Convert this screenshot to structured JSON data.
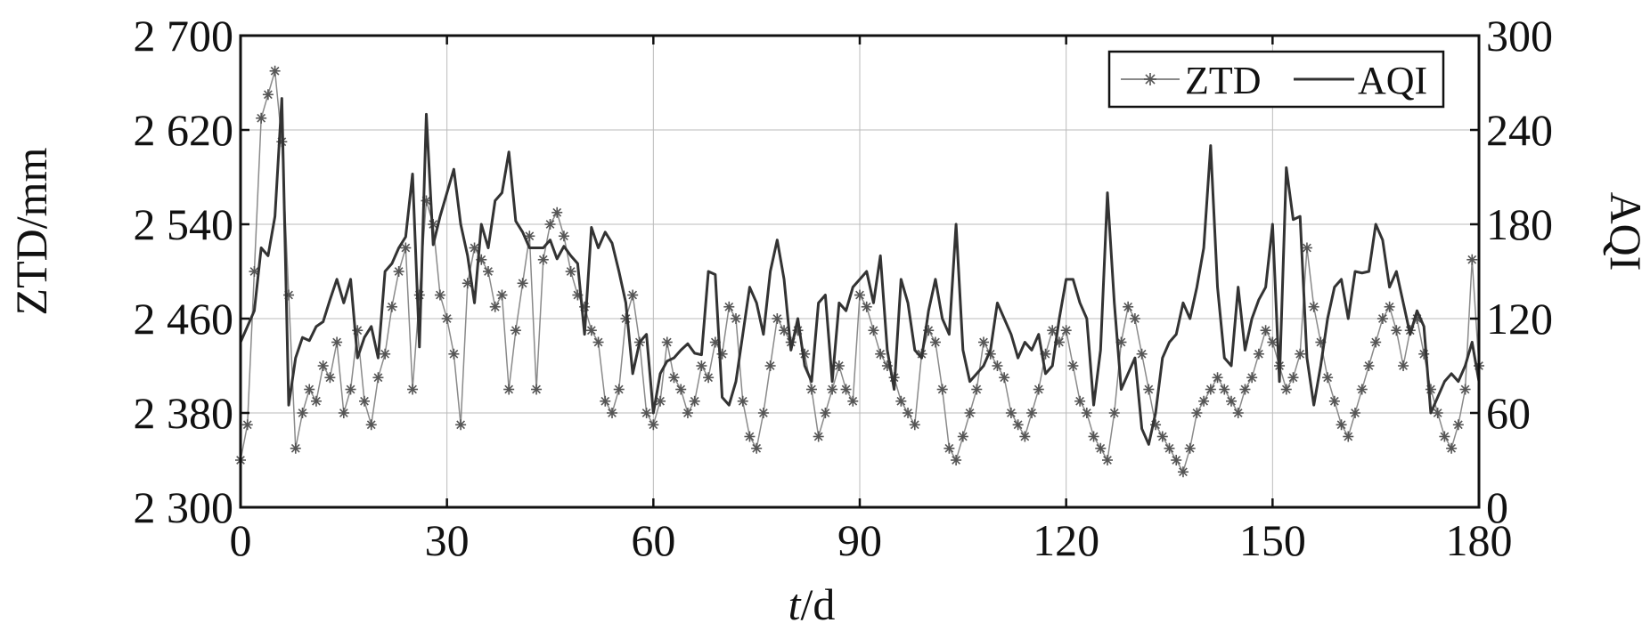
{
  "chart_data": {
    "type": "line",
    "title": "",
    "xlabel_italic": "t",
    "xlabel_rest": "/d",
    "ylabel_left": "ZTD/mm",
    "ylabel_right": "AQI",
    "xlim": [
      0,
      180
    ],
    "ylim_left": [
      2300,
      2700
    ],
    "ylim_right": [
      0,
      300
    ],
    "x_ticks": [
      0,
      30,
      60,
      90,
      120,
      150,
      180
    ],
    "x_tick_labels": [
      "0",
      "30",
      "60",
      "90",
      "120",
      "150",
      "180"
    ],
    "y_left_ticks": [
      2300,
      2380,
      2460,
      2540,
      2620,
      2700
    ],
    "y_left_tick_labels": [
      "2 300",
      "2 380",
      "2 460",
      "2 540",
      "2 620",
      "2 700"
    ],
    "y_right_ticks": [
      0,
      60,
      120,
      180,
      240,
      300
    ],
    "y_right_tick_labels": [
      "0",
      "60",
      "120",
      "180",
      "240",
      "300"
    ],
    "grid": true,
    "legend_position": "top-right",
    "colors": {
      "ztd": "#8a8a8a",
      "ztd_marker": "#555555",
      "aqi": "#333333",
      "axis": "#111111",
      "grid": "#bbbbbb"
    },
    "series": [
      {
        "name": "ZTD",
        "axis": "left",
        "style": "line-star-marker",
        "x": [
          0,
          1,
          2,
          3,
          4,
          5,
          6,
          7,
          8,
          9,
          10,
          11,
          12,
          13,
          14,
          15,
          16,
          17,
          18,
          19,
          20,
          21,
          22,
          23,
          24,
          25,
          26,
          27,
          28,
          29,
          30,
          31,
          32,
          33,
          34,
          35,
          36,
          37,
          38,
          39,
          40,
          41,
          42,
          43,
          44,
          45,
          46,
          47,
          48,
          49,
          50,
          51,
          52,
          53,
          54,
          55,
          56,
          57,
          58,
          59,
          60,
          61,
          62,
          63,
          64,
          65,
          66,
          67,
          68,
          69,
          70,
          71,
          72,
          73,
          74,
          75,
          76,
          77,
          78,
          79,
          80,
          81,
          82,
          83,
          84,
          85,
          86,
          87,
          88,
          89,
          90,
          91,
          92,
          93,
          94,
          95,
          96,
          97,
          98,
          99,
          100,
          101,
          102,
          103,
          104,
          105,
          106,
          107,
          108,
          109,
          110,
          111,
          112,
          113,
          114,
          115,
          116,
          117,
          118,
          119,
          120,
          121,
          122,
          123,
          124,
          125,
          126,
          127,
          128,
          129,
          130,
          131,
          132,
          133,
          134,
          135,
          136,
          137,
          138,
          139,
          140,
          141,
          142,
          143,
          144,
          145,
          146,
          147,
          148,
          149,
          150,
          151,
          152,
          153,
          154,
          155,
          156,
          157,
          158,
          159,
          160,
          161,
          162,
          163,
          164,
          165,
          166,
          167,
          168,
          169,
          170,
          171,
          172,
          173,
          174,
          175,
          176,
          177,
          178,
          179,
          180
        ],
        "values": [
          2340,
          2370,
          2500,
          2630,
          2650,
          2670,
          2610,
          2480,
          2350,
          2380,
          2400,
          2390,
          2420,
          2410,
          2440,
          2380,
          2400,
          2450,
          2390,
          2370,
          2410,
          2430,
          2470,
          2500,
          2520,
          2400,
          2480,
          2560,
          2540,
          2480,
          2460,
          2430,
          2370,
          2490,
          2520,
          2510,
          2500,
          2470,
          2480,
          2400,
          2450,
          2490,
          2530,
          2400,
          2510,
          2540,
          2550,
          2530,
          2500,
          2480,
          2470,
          2450,
          2440,
          2390,
          2380,
          2400,
          2460,
          2480,
          2440,
          2380,
          2370,
          2390,
          2440,
          2410,
          2400,
          2380,
          2390,
          2420,
          2410,
          2440,
          2430,
          2470,
          2460,
          2390,
          2360,
          2350,
          2380,
          2420,
          2460,
          2450,
          2440,
          2450,
          2430,
          2400,
          2360,
          2380,
          2400,
          2420,
          2400,
          2390,
          2480,
          2470,
          2450,
          2430,
          2420,
          2410,
          2390,
          2380,
          2370,
          2430,
          2450,
          2440,
          2400,
          2350,
          2340,
          2360,
          2380,
          2400,
          2440,
          2430,
          2420,
          2410,
          2380,
          2370,
          2360,
          2380,
          2400,
          2430,
          2450,
          2440,
          2450,
          2420,
          2390,
          2380,
          2360,
          2350,
          2340,
          2380,
          2440,
          2470,
          2460,
          2430,
          2400,
          2370,
          2360,
          2350,
          2340,
          2330,
          2350,
          2380,
          2390,
          2400,
          2410,
          2400,
          2390,
          2380,
          2400,
          2410,
          2430,
          2450,
          2440,
          2420,
          2400,
          2410,
          2430,
          2520,
          2470,
          2440,
          2410,
          2390,
          2370,
          2360,
          2380,
          2400,
          2420,
          2440,
          2460,
          2470,
          2450,
          2420,
          2450,
          2460,
          2430,
          2400,
          2380,
          2360,
          2350,
          2370,
          2400,
          2510,
          2420
        ]
      },
      {
        "name": "AQI",
        "axis": "right",
        "style": "line",
        "x": [
          0,
          1,
          2,
          3,
          4,
          5,
          6,
          7,
          8,
          9,
          10,
          11,
          12,
          13,
          14,
          15,
          16,
          17,
          18,
          19,
          20,
          21,
          22,
          23,
          24,
          25,
          26,
          27,
          28,
          29,
          30,
          31,
          32,
          33,
          34,
          35,
          36,
          37,
          38,
          39,
          40,
          41,
          42,
          43,
          44,
          45,
          46,
          47,
          48,
          49,
          50,
          51,
          52,
          53,
          54,
          55,
          56,
          57,
          58,
          59,
          60,
          61,
          62,
          63,
          64,
          65,
          66,
          67,
          68,
          69,
          70,
          71,
          72,
          73,
          74,
          75,
          76,
          77,
          78,
          79,
          80,
          81,
          82,
          83,
          84,
          85,
          86,
          87,
          88,
          89,
          90,
          91,
          92,
          93,
          94,
          95,
          96,
          97,
          98,
          99,
          100,
          101,
          102,
          103,
          104,
          105,
          106,
          107,
          108,
          109,
          110,
          111,
          112,
          113,
          114,
          115,
          116,
          117,
          118,
          119,
          120,
          121,
          122,
          123,
          124,
          125,
          126,
          127,
          128,
          129,
          130,
          131,
          132,
          133,
          134,
          135,
          136,
          137,
          138,
          139,
          140,
          141,
          142,
          143,
          144,
          145,
          146,
          147,
          148,
          149,
          150,
          151,
          152,
          153,
          154,
          155,
          156,
          157,
          158,
          159,
          160,
          161,
          162,
          163,
          164,
          165,
          166,
          167,
          168,
          169,
          170,
          171,
          172,
          173,
          174,
          175,
          176,
          177,
          178,
          179,
          180
        ],
        "values": [
          105,
          115,
          125,
          165,
          160,
          185,
          260,
          65,
          95,
          108,
          106,
          115,
          118,
          132,
          145,
          130,
          145,
          95,
          108,
          115,
          95,
          150,
          155,
          165,
          172,
          212,
          102,
          250,
          167,
          185,
          200,
          215,
          180,
          160,
          130,
          180,
          165,
          195,
          200,
          226,
          182,
          175,
          165,
          165,
          165,
          170,
          158,
          166,
          160,
          155,
          110,
          178,
          165,
          175,
          168,
          150,
          130,
          85,
          105,
          110,
          60,
          85,
          93,
          95,
          100,
          104,
          98,
          97,
          150,
          148,
          70,
          65,
          80,
          110,
          140,
          130,
          110,
          150,
          170,
          145,
          100,
          120,
          90,
          80,
          130,
          135,
          80,
          130,
          125,
          140,
          145,
          150,
          130,
          160,
          100,
          75,
          145,
          130,
          100,
          95,
          125,
          145,
          120,
          110,
          180,
          100,
          80,
          85,
          90,
          100,
          130,
          120,
          110,
          95,
          105,
          100,
          110,
          85,
          90,
          120,
          145,
          145,
          130,
          120,
          65,
          100,
          200,
          130,
          75,
          85,
          95,
          50,
          40,
          60,
          95,
          105,
          110,
          130,
          120,
          140,
          165,
          230,
          140,
          95,
          90,
          140,
          100,
          120,
          132,
          140,
          180,
          80,
          216,
          183,
          185,
          95,
          65,
          90,
          120,
          140,
          145,
          120,
          150,
          149,
          150,
          180,
          170,
          140,
          150,
          130,
          110,
          125,
          115,
          60,
          70,
          80,
          85,
          80,
          90,
          105,
          80
        ]
      }
    ],
    "legend": [
      {
        "label": "ZTD",
        "style": "line-star-marker"
      },
      {
        "label": "AQI",
        "style": "line"
      }
    ]
  }
}
